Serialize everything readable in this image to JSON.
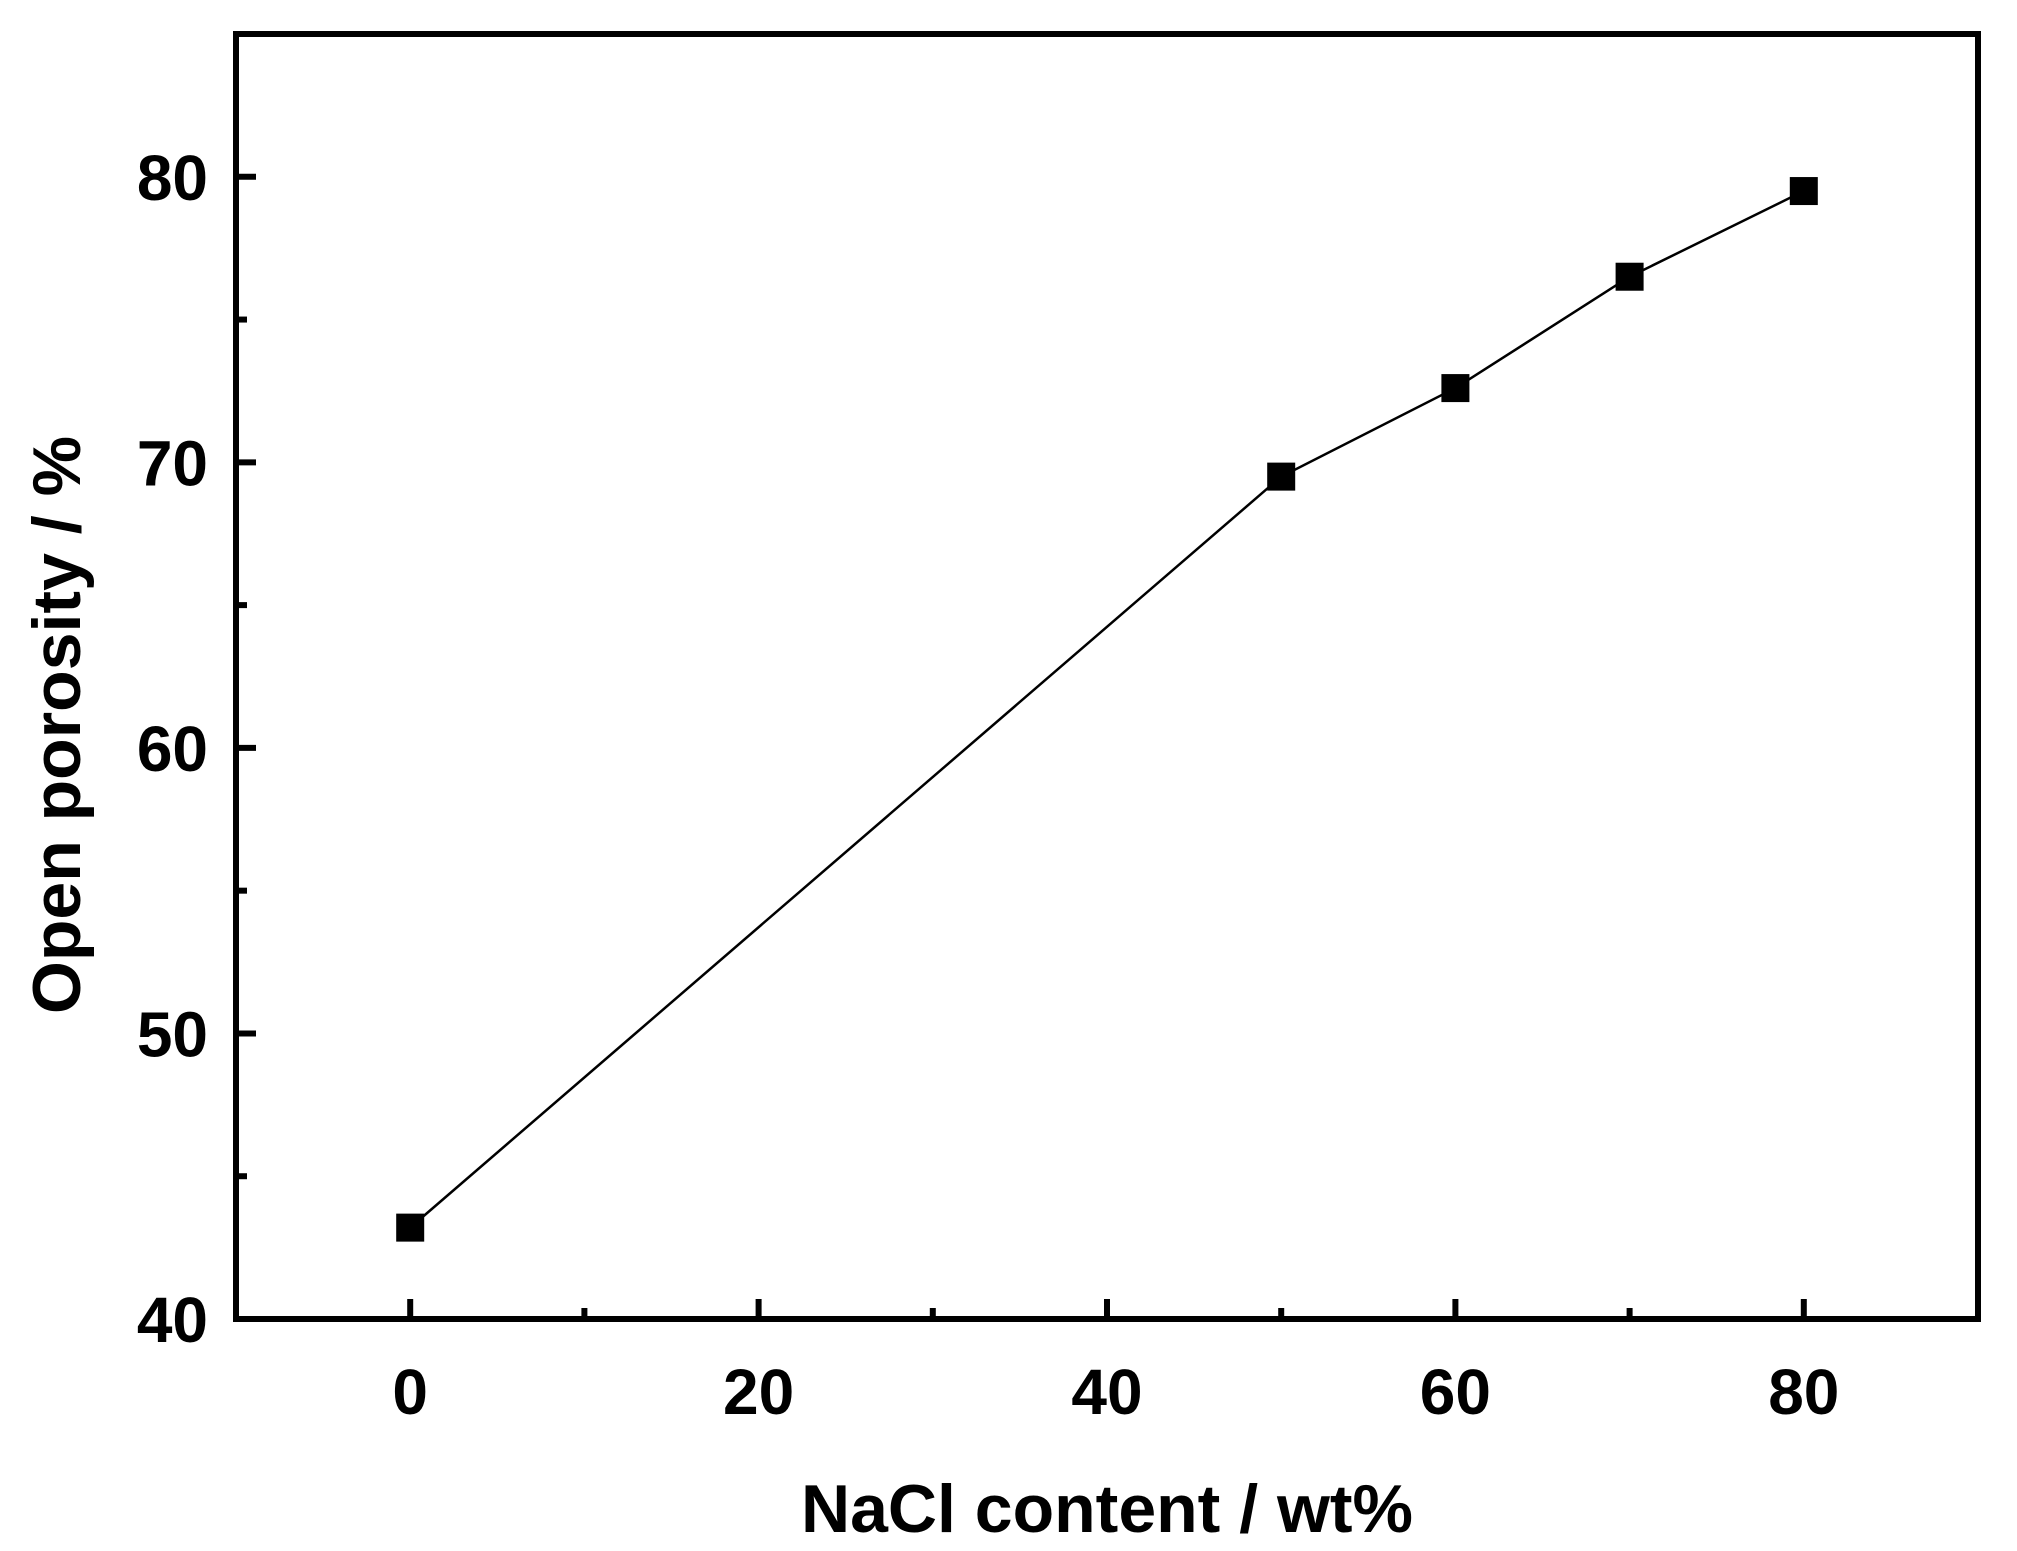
{
  "chart_data": {
    "type": "line",
    "title": "",
    "xlabel": "NaCl content / wt%",
    "ylabel": "Open porosity / %",
    "xlim": [
      -10,
      90
    ],
    "ylim": [
      40,
      85
    ],
    "x_ticks": [
      0,
      20,
      40,
      60,
      80
    ],
    "x_minor_ticks": [
      10,
      30,
      50,
      70
    ],
    "y_ticks": [
      40,
      50,
      60,
      70,
      80
    ],
    "y_minor_ticks": [
      45,
      55,
      65,
      75
    ],
    "grid": false,
    "legend": "none",
    "marker": "square",
    "color": "#000000",
    "series": [
      {
        "x": [
          0,
          50,
          60,
          70,
          80
        ],
        "y": [
          43.2,
          69.5,
          72.6,
          76.5,
          79.5
        ]
      }
    ]
  }
}
